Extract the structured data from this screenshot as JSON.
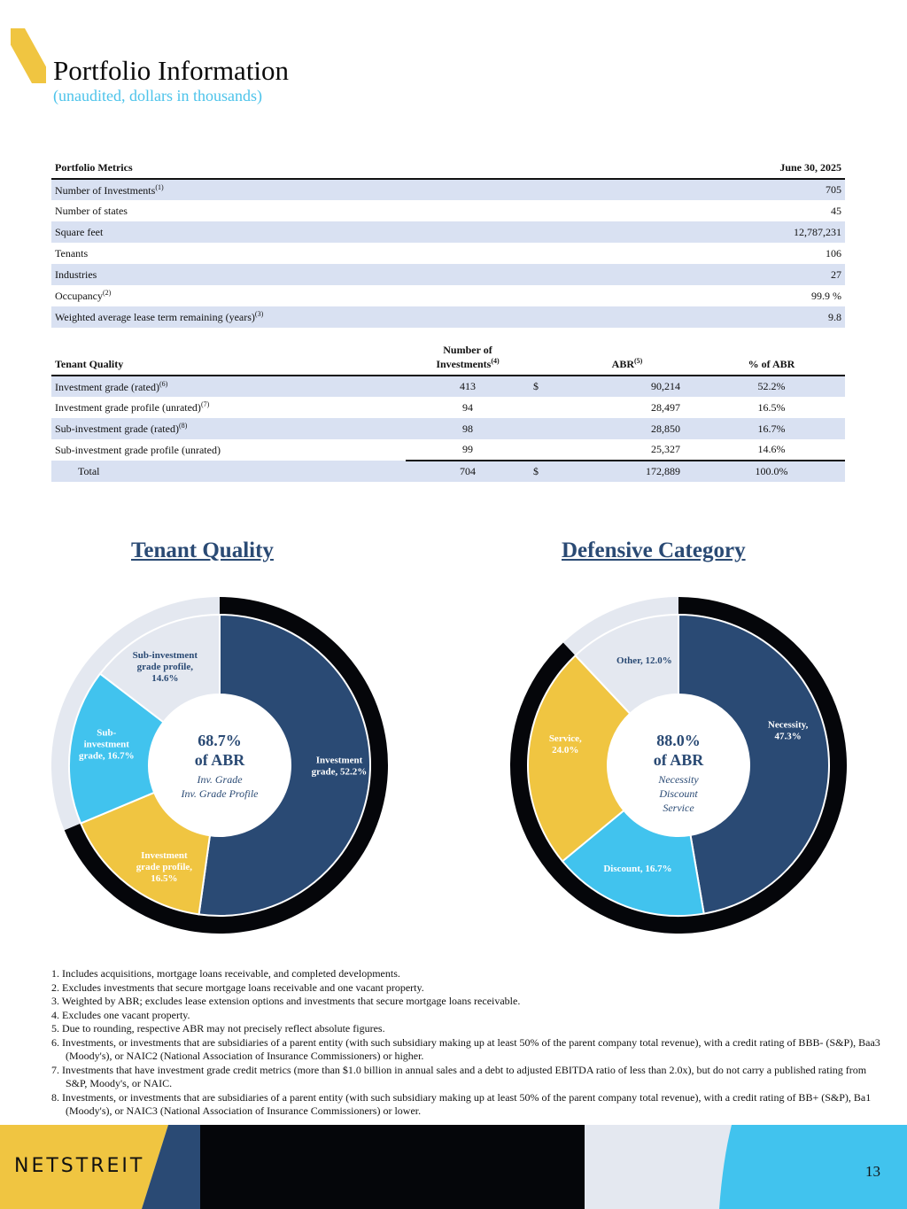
{
  "header": {
    "title": "Portfolio Information",
    "subtitle": "(unaudited, dollars in thousands)"
  },
  "metrics": {
    "col1": "Portfolio Metrics",
    "col2": "June 30, 2025",
    "rows": [
      {
        "label": "Number of Investments",
        "sup": "(1)",
        "value": "705"
      },
      {
        "label": "Number of states",
        "sup": "",
        "value": "45"
      },
      {
        "label": "Square feet",
        "sup": "",
        "value": "12,787,231"
      },
      {
        "label": "Tenants",
        "sup": "",
        "value": "106"
      },
      {
        "label": "Industries",
        "sup": "",
        "value": "27"
      },
      {
        "label": "Occupancy",
        "sup": "(2)",
        "value": "99.9 %"
      },
      {
        "label": "Weighted average lease term remaining (years)",
        "sup": "(3)",
        "value": "9.8"
      }
    ]
  },
  "quality": {
    "h1": "Tenant Quality",
    "h2a": "Number of",
    "h2b": "Investments",
    "h2sup": "(4)",
    "h3": "ABR",
    "h3sup": "(5)",
    "h4": "% of ABR",
    "rows": [
      {
        "label": "Investment grade (rated)",
        "sup": "(6)",
        "n": "413",
        "cur": "$",
        "abr": "90,214",
        "pct": "52.2%"
      },
      {
        "label": "Investment grade profile (unrated)",
        "sup": "(7)",
        "n": "94",
        "cur": "",
        "abr": "28,497",
        "pct": "16.5%"
      },
      {
        "label": "Sub-investment grade (rated)",
        "sup": "(8)",
        "n": "98",
        "cur": "",
        "abr": "28,850",
        "pct": "16.7%"
      },
      {
        "label": "Sub-investment grade profile (unrated)",
        "sup": "",
        "n": "99",
        "cur": "",
        "abr": "25,327",
        "pct": "14.6%"
      }
    ],
    "total": {
      "label": "Total",
      "n": "704",
      "cur": "$",
      "abr": "172,889",
      "pct": "100.0%"
    }
  },
  "chart_data": [
    {
      "type": "pie",
      "title": "Tenant Quality",
      "categories": [
        "Investment grade",
        "Investment grade profile",
        "Sub-investment grade",
        "Sub-investment grade profile"
      ],
      "values": [
        52.2,
        16.5,
        16.7,
        14.6
      ],
      "labels": [
        [
          "Investment",
          "grade, 52.2%"
        ],
        [
          "Investment",
          "grade profile,",
          "16.5%"
        ],
        [
          "Sub-",
          "investment",
          "grade, 16.7%"
        ],
        [
          "Sub-investment",
          "grade profile,",
          "14.6%"
        ]
      ],
      "outer_ring_pct": 68.7,
      "center": {
        "big": "68.7%",
        "sub": "of ABR",
        "lines": [
          "Inv. Grade",
          "Inv. Grade Profile"
        ]
      }
    },
    {
      "type": "pie",
      "title": "Defensive Category",
      "categories": [
        "Necessity",
        "Discount",
        "Service",
        "Other"
      ],
      "values": [
        47.3,
        16.7,
        24.0,
        12.0
      ],
      "labels": [
        [
          "Necessity,",
          "47.3%"
        ],
        [
          "Discount, 16.7%"
        ],
        [
          "Service,",
          "24.0%"
        ],
        [
          "Other, 12.0%"
        ]
      ],
      "outer_ring_pct": 88.0,
      "center": {
        "big": "88.0%",
        "sub": "of ABR",
        "lines": [
          "Necessity",
          "Discount",
          "Service"
        ]
      }
    }
  ],
  "colors": {
    "navy": "#2a4a74",
    "yellow": "#f0c541",
    "cyan": "#41c3ee",
    "gray": "#e4e8f0",
    "black": "#05060a"
  },
  "footnotes": [
    "1.  Includes acquisitions, mortgage loans receivable, and completed developments.",
    "2.  Excludes investments that secure mortgage loans receivable and one vacant property.",
    "3.  Weighted by ABR; excludes lease extension options and investments that secure mortgage loans receivable.",
    "4.  Excludes one vacant property.",
    "5.  Due to rounding, respective ABR may not precisely reflect absolute figures.",
    "6.  Investments, or investments that are subsidiaries of a parent entity (with such subsidiary making up at least 50% of the parent company total revenue), with a credit rating of BBB- (S&P), Baa3 (Moody's), or NAIC2 (National Association of Insurance Commissioners) or higher.",
    "7.  Investments that have investment grade credit metrics (more than $1.0 billion in annual sales and a debt to adjusted EBITDA ratio of less than 2.0x), but do not carry a published rating from S&P, Moody's, or NAIC.",
    "8.  Investments, or investments that are subsidiaries of a parent entity (with such subsidiary making up at least 50% of the parent company total revenue), with a credit rating of BB+ (S&P), Ba1 (Moody's), or NAIC3 (National Association of Insurance Commissioners) or lower."
  ],
  "footer": {
    "logo": "NETSTREIT",
    "page": "13"
  }
}
